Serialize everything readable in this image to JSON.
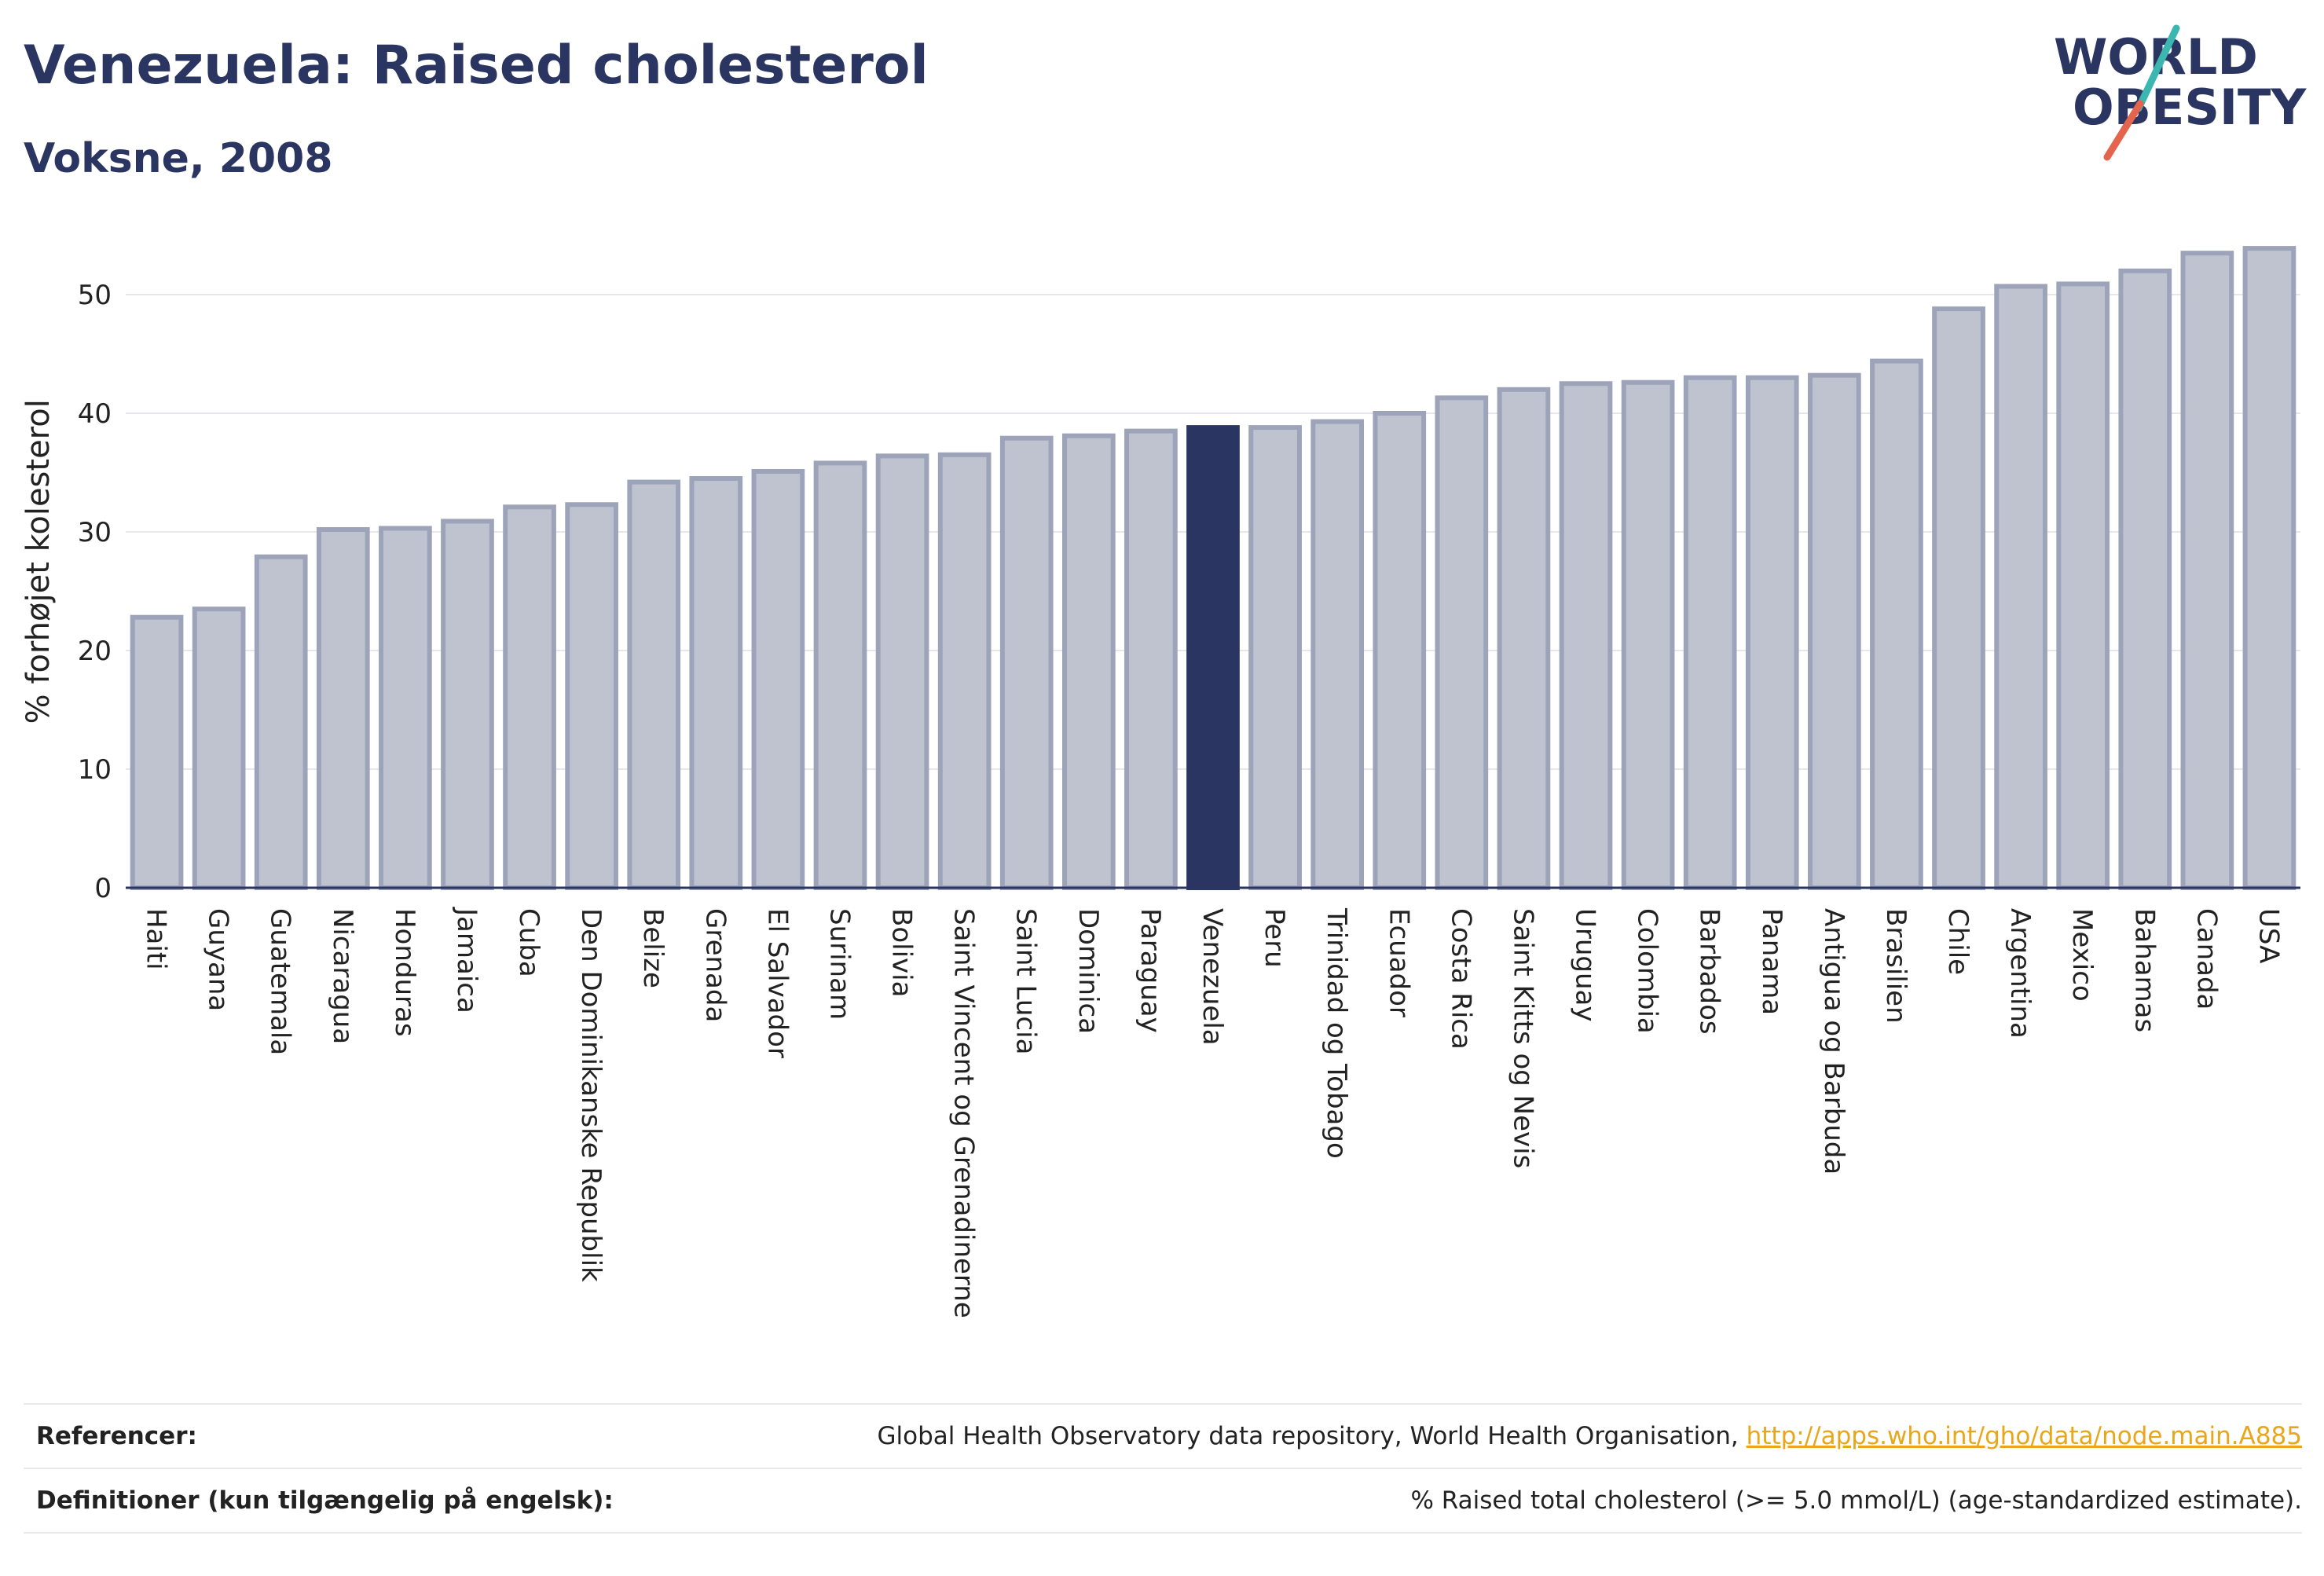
{
  "header": {
    "title": "Venezuela: Raised cholesterol",
    "subtitle": "Voksne, 2008"
  },
  "logo": {
    "line1": "WORLD",
    "line2": "OBESITY",
    "colors": {
      "text": "#2b3561",
      "slash_top": "#3bb6b0",
      "slash_bottom": "#e4644e"
    }
  },
  "colors": {
    "bar": "#bfc3d0",
    "bar_edge": "#9da3b9",
    "highlight": "#2b3561",
    "axis": "#2b3561"
  },
  "chart_data": {
    "type": "bar",
    "ylabel": "% forhøjet kolesterol",
    "ylim": [
      0,
      55
    ],
    "yticks": [
      0,
      10,
      20,
      30,
      40,
      50
    ],
    "grid": true,
    "highlight": "Venezuela",
    "categories": [
      "Haiti",
      "Guyana",
      "Guatemala",
      "Nicaragua",
      "Honduras",
      "Jamaica",
      "Cuba",
      "Den Dominikanske Republik",
      "Belize",
      "Grenada",
      "El Salvador",
      "Surinam",
      "Bolivia",
      "Saint Vincent og Grenadinerne",
      "Saint Lucia",
      "Dominica",
      "Paraguay",
      "Venezuela",
      "Peru",
      "Trinidad og Tobago",
      "Ecuador",
      "Costa Rica",
      "Saint Kitts og Nevis",
      "Uruguay",
      "Colombia",
      "Barbados",
      "Panama",
      "Antigua og Barbuda",
      "Brasilien",
      "Chile",
      "Argentina",
      "Mexico",
      "Bahamas",
      "Canada",
      "USA"
    ],
    "values": [
      22.8,
      23.5,
      27.9,
      30.2,
      30.3,
      30.9,
      32.1,
      32.3,
      34.2,
      34.5,
      35.1,
      35.8,
      36.4,
      36.5,
      37.9,
      38.1,
      38.5,
      38.8,
      38.8,
      39.3,
      40.0,
      41.3,
      42.0,
      42.5,
      42.6,
      43.0,
      43.0,
      43.2,
      44.4,
      48.8,
      50.7,
      50.9,
      52.0,
      53.5,
      53.9
    ]
  },
  "footer": {
    "references_label": "Referencer:",
    "references_text": "Global Health Observatory data repository, World Health Organisation, ",
    "references_link": "http://apps.who.int/gho/data/node.main.A885",
    "definitions_label": "Definitioner (kun tilgængelig på engelsk):",
    "definitions_text": "% Raised total cholesterol (>= 5.0 mmol/L) (age-standardized estimate)."
  }
}
